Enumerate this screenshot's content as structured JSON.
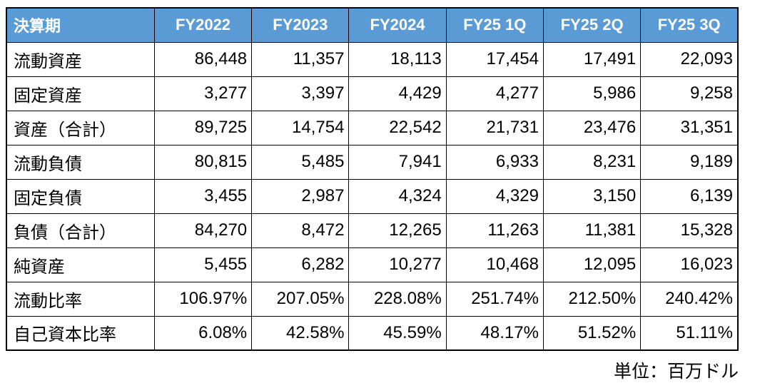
{
  "table": {
    "header": [
      "決算期",
      "FY2022",
      "FY2023",
      "FY2024",
      "FY25 1Q",
      "FY25 2Q",
      "FY25 3Q"
    ],
    "rows": [
      {
        "label": "流動資産",
        "values": [
          "86,448",
          "11,357",
          "18,113",
          "17,454",
          "17,491",
          "22,093"
        ]
      },
      {
        "label": "固定資産",
        "values": [
          "3,277",
          "3,397",
          "4,429",
          "4,277",
          "5,986",
          "9,258"
        ]
      },
      {
        "label": "資産（合計）",
        "values": [
          "89,725",
          "14,754",
          "22,542",
          "21,731",
          "23,476",
          "31,351"
        ]
      },
      {
        "label": "流動負債",
        "values": [
          "80,815",
          "5,485",
          "7,941",
          "6,933",
          "8,231",
          "9,189"
        ]
      },
      {
        "label": "固定負債",
        "values": [
          "3,455",
          "2,987",
          "4,324",
          "4,329",
          "3,150",
          "6,139"
        ]
      },
      {
        "label": "負債（合計）",
        "values": [
          "84,270",
          "8,472",
          "12,265",
          "11,263",
          "11,381",
          "15,328"
        ]
      },
      {
        "label": "純資産",
        "values": [
          "5,455",
          "6,282",
          "10,277",
          "10,468",
          "12,095",
          "16,023"
        ]
      },
      {
        "label": "流動比率",
        "values": [
          "106.97%",
          "207.05%",
          "228.08%",
          "251.74%",
          "212.50%",
          "240.42%"
        ]
      },
      {
        "label": "自己資本比率",
        "values": [
          "6.08%",
          "42.58%",
          "45.59%",
          "48.17%",
          "51.52%",
          "51.11%"
        ]
      }
    ],
    "unit_note": "単位：百万ドル"
  },
  "colors": {
    "header_bg": "#5B9BD5",
    "header_text": "#FFFFFF",
    "body_text": "#000000",
    "border": "#000000",
    "background": "#FFFFFF"
  }
}
